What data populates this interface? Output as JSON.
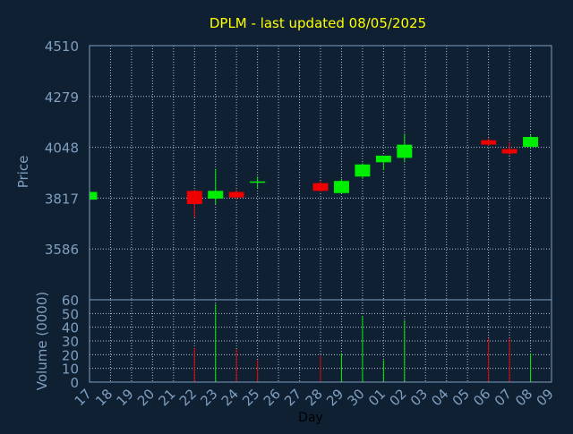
{
  "chart_data": [
    {
      "type": "candlestick",
      "title": "DPLM - last updated 08/05/2025",
      "ylabel": "Price",
      "ylim": [
        3355,
        4510
      ],
      "yticks": [
        3586,
        3817,
        4048,
        4279,
        4510
      ],
      "grid": true,
      "colors": {
        "up": "#00ee00",
        "down": "#ee0000"
      },
      "candles": [
        {
          "day": "17",
          "open": 3810,
          "high": 3850,
          "low": 3805,
          "close": 3845
        },
        {
          "day": "22",
          "open": 3850,
          "high": 3855,
          "low": 3730,
          "close": 3790
        },
        {
          "day": "23",
          "open": 3815,
          "high": 3950,
          "low": 3790,
          "close": 3850
        },
        {
          "day": "24",
          "open": 3845,
          "high": 3855,
          "low": 3810,
          "close": 3820
        },
        {
          "day": "25",
          "open": 3890,
          "high": 3915,
          "low": 3860,
          "close": 3890
        },
        {
          "day": "28",
          "open": 3885,
          "high": 3895,
          "low": 3845,
          "close": 3850
        },
        {
          "day": "29",
          "open": 3840,
          "high": 3905,
          "low": 3840,
          "close": 3895
        },
        {
          "day": "30",
          "open": 3915,
          "high": 3975,
          "low": 3905,
          "close": 3970
        },
        {
          "day": "01",
          "open": 3980,
          "high": 4010,
          "low": 3945,
          "close": 4010
        },
        {
          "day": "02",
          "open": 4000,
          "high": 4110,
          "low": 3980,
          "close": 4060
        },
        {
          "day": "06",
          "open": 4080,
          "high": 4090,
          "low": 4055,
          "close": 4060
        },
        {
          "day": "07",
          "open": 4040,
          "high": 4070,
          "low": 4010,
          "close": 4020
        },
        {
          "day": "08",
          "open": 4050,
          "high": 4105,
          "low": 4045,
          "close": 4095
        }
      ]
    },
    {
      "type": "bar",
      "ylabel": "Volume (0000)",
      "xlabel": "Day",
      "ylim": [
        0,
        60
      ],
      "yticks": [
        0,
        10,
        20,
        30,
        40,
        50,
        60
      ],
      "categories": [
        "17",
        "18",
        "19",
        "20",
        "21",
        "22",
        "23",
        "24",
        "25",
        "26",
        "27",
        "28",
        "29",
        "30",
        "01",
        "02",
        "03",
        "04",
        "05",
        "06",
        "07",
        "08",
        "09"
      ],
      "bars": [
        {
          "day": "22",
          "value": 25,
          "color": "#ee0000"
        },
        {
          "day": "23",
          "value": 57,
          "color": "#00ee00"
        },
        {
          "day": "24",
          "value": 24,
          "color": "#ee0000"
        },
        {
          "day": "25",
          "value": 16,
          "color": "#ee0000"
        },
        {
          "day": "28",
          "value": 19,
          "color": "#ee0000"
        },
        {
          "day": "29",
          "value": 21,
          "color": "#00ee00"
        },
        {
          "day": "30",
          "value": 48,
          "color": "#00ee00"
        },
        {
          "day": "01",
          "value": 16,
          "color": "#00ee00"
        },
        {
          "day": "02",
          "value": 45,
          "color": "#00ee00"
        },
        {
          "day": "06",
          "value": 32,
          "color": "#ee0000"
        },
        {
          "day": "07",
          "value": 32,
          "color": "#ee0000"
        },
        {
          "day": "08",
          "value": 21,
          "color": "#00ee00"
        }
      ]
    }
  ]
}
